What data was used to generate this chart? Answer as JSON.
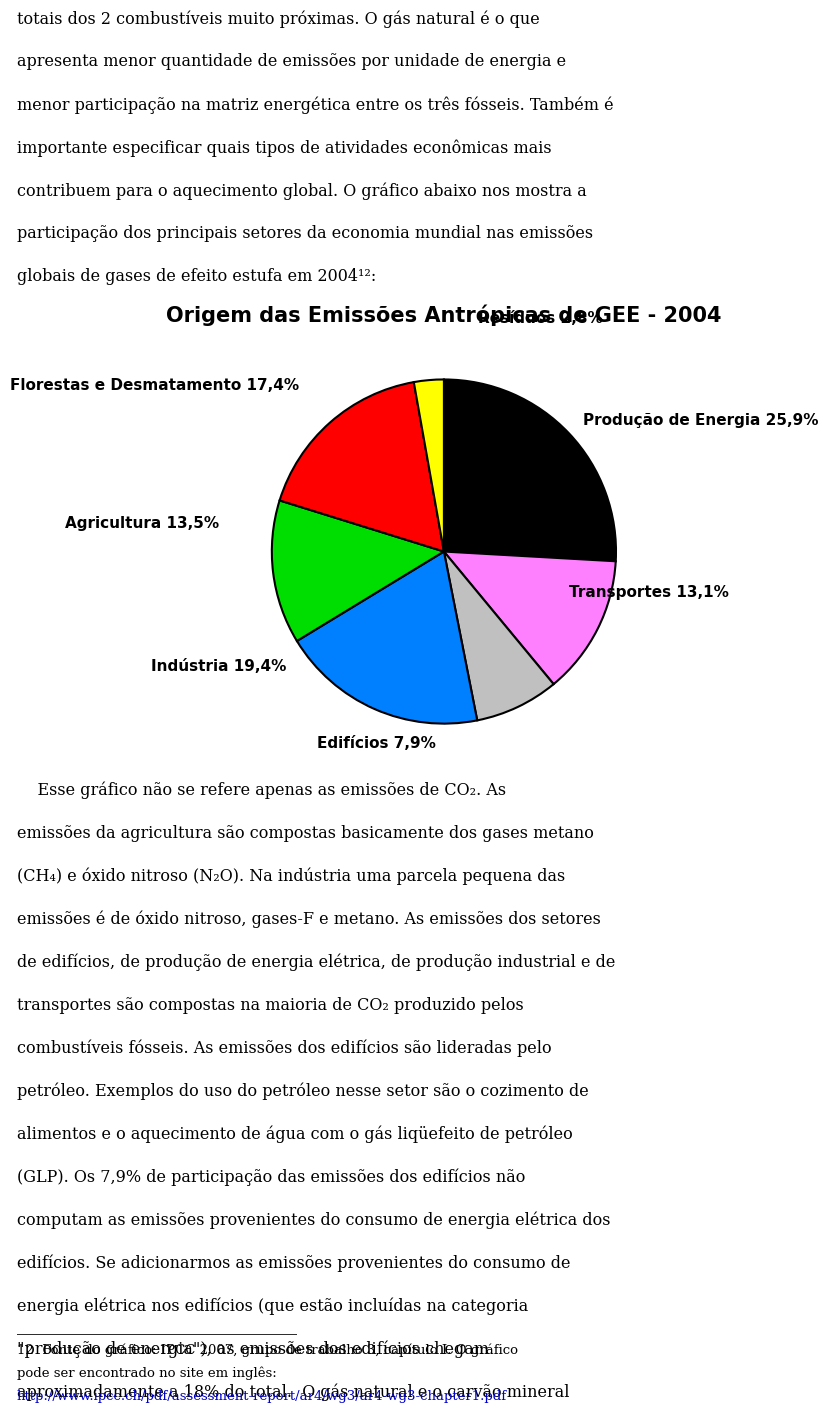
{
  "title": "Origem das Emissões Antrópicas de GEE - 2004",
  "slices": [
    {
      "label": "Produção de Energia 25,9%",
      "value": 25.9,
      "color": "#000000"
    },
    {
      "label": "Transportes 13,1%",
      "value": 13.1,
      "color": "#ff80ff"
    },
    {
      "label": "Edifícios 7,9%",
      "value": 7.9,
      "color": "#c0c0c0"
    },
    {
      "label": "Indústria 19,4%",
      "value": 19.4,
      "color": "#0080ff"
    },
    {
      "label": "Agricultura 13,5%",
      "value": 13.5,
      "color": "#00dd00"
    },
    {
      "label": "Florestas e Desmatamento 17,4%",
      "value": 17.4,
      "color": "#ff0000"
    },
    {
      "label": "Resíduos 2,8%",
      "value": 2.8,
      "color": "#ffff00"
    }
  ],
  "title_fontsize": 15,
  "label_fontsize": 11,
  "background_color": "#ffffff",
  "text_color": "#000000",
  "startangle": 90,
  "top_text": [
    "totais dos 2 combustíveis muito próximas. O gás natural é o que",
    "apresenta menor quantidade de emissões por unidade de energia e",
    "menor participação na matriz energética entre os três fósseis. Também é",
    "importante especificar quais tipos de atividades econômicas mais",
    "contribuem para o aquecimento global. O gráfico abaixo nos mostra a",
    "participação dos principais setores da economia mundial nas emissões",
    "globais de gases de efeito estufa em 2004¹²:"
  ],
  "bottom_text": [
    "    Esse gráfico não se refere apenas as emissões de CO₂. As",
    "emissões da agricultura são compostas basicamente dos gases metano",
    "(CH₄) e óxido nitroso (N₂O). Na indústria uma parcela pequena das",
    "emissões é de óxido nitroso, gases-F e metano. As emissões dos setores",
    "de edifícios, de produção de energia elétrica, de produção industrial e de",
    "transportes são compostas na maioria de CO₂ produzido pelos",
    "combustíveis fósseis. As emissões dos edifícios são lideradas pelo",
    "petróleo. Exemplos do uso do petróleo nesse setor são o cozimento de",
    "alimentos e o aquecimento de água com o gás liqüefeito de petróleo",
    "(GLP). Os 7,9% de participação das emissões dos edifícios não",
    "computam as emissões provenientes do consumo de energia elétrica dos",
    "edifícios. Se adicionarmos as emissões provenientes do consumo de",
    "energia elétrica nos edifícios (que estão incluídas na categoria",
    "\"produção de energia\"), as emissões dos edifícios chegam",
    "aproximadamente a 18% do total.  O gás natural e o carvão mineral"
  ],
  "footnote_line": "___________________________________",
  "footnote": "12  Fonte do gráfico: IPCC 2007, grupo de trabalho 3, capítulo I. O gráfico",
  "footnote2": "pode ser encontrado no site em inglês:",
  "footnote3": "http://www.ipcc.ch/pdf/assessment-report/ar4/wg3/ar4-wg3-chapter1.pdf"
}
